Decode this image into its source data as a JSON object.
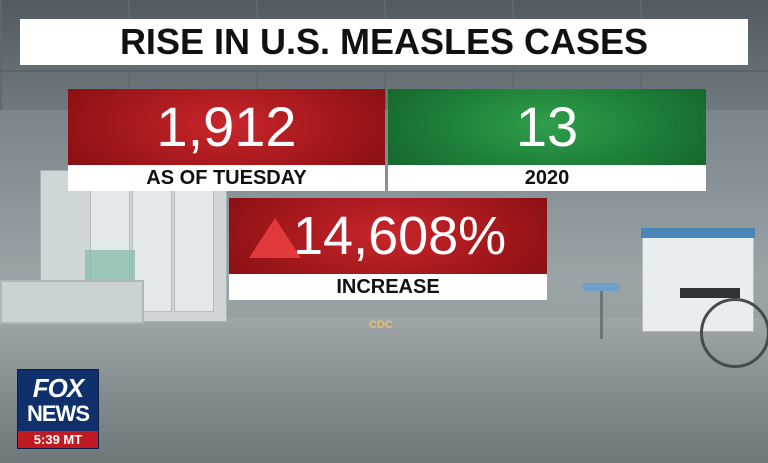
{
  "title": "RISE IN U.S. MEASLES CASES",
  "stats": {
    "current": {
      "value": "1,912",
      "label": "AS OF TUESDAY",
      "color": "#b0181d"
    },
    "baseline": {
      "value": "13",
      "label": "2020",
      "color": "#1f8a3c"
    },
    "change": {
      "value": "14,608%",
      "label": "INCREASE",
      "color": "#b0181d",
      "icon": "up-triangle-icon"
    }
  },
  "source": "CDC",
  "network": {
    "logo_line1": "FOX",
    "logo_line2": "NEWS",
    "time": "5:39 MT"
  }
}
